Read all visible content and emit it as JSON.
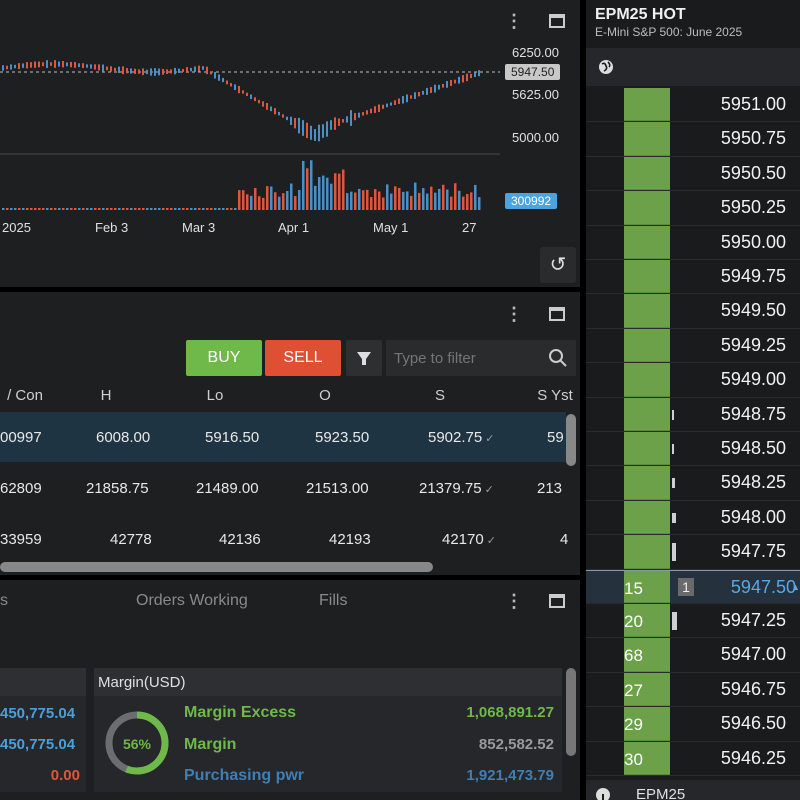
{
  "chart_panel": {
    "y_labels": [
      "6250.00",
      "5625.00",
      "5000.00"
    ],
    "last_price_tag": "5947.50",
    "volume_tag": "300992",
    "x_labels": [
      "2025",
      "Feb 3",
      "Mar 3",
      "Apr 1",
      "May 1",
      "27"
    ],
    "colors": {
      "up": "#4a90c8",
      "down": "#e0563c",
      "volume_tag": "#4ca3dd"
    }
  },
  "quote_panel": {
    "buy_label": "BUY",
    "sell_label": "SELL",
    "filter_placeholder": "Type to filter",
    "columns": [
      "/ Con",
      "H",
      "Lo",
      "O",
      "S",
      "S Yst"
    ],
    "rows": [
      {
        "con": "00997",
        "h": "6008.00",
        "lo": "5916.50",
        "o": "5923.50",
        "s": "5902.75",
        "ys": "59"
      },
      {
        "con": "62809",
        "h": "21858.75",
        "lo": "21489.00",
        "o": "21513.00",
        "s": "21379.75",
        "ys": "213"
      },
      {
        "con": "33959",
        "h": "42778",
        "lo": "42136",
        "o": "42193",
        "s": "42170",
        "ys": "4"
      }
    ],
    "check": "✓"
  },
  "orders_panel": {
    "tabs": [
      "s",
      "Orders Working",
      "Fills"
    ],
    "left_values": [
      "450,775.04",
      "450,775.04",
      "0.00"
    ],
    "margin": {
      "title": "Margin(USD)",
      "gauge": "56%",
      "gauge_fraction": 0.56,
      "rows": [
        {
          "label": "Margin Excess",
          "value": "1,068,891.27"
        },
        {
          "label": "Margin",
          "value": "852,582.52"
        },
        {
          "label": "Purchasing pwr",
          "value": "1,921,473.79"
        }
      ]
    }
  },
  "dom_panel": {
    "symbol": "EPM25 HOT",
    "description": "E-Mini S&P 500: June 2025",
    "prices": [
      "5951.00",
      "5950.75",
      "5950.50",
      "5950.25",
      "5950.00",
      "5949.75",
      "5949.50",
      "5949.25",
      "5949.00",
      "5948.75",
      "5948.50",
      "5948.25",
      "5948.00",
      "5947.75",
      "5947.50",
      "5947.25",
      "5947.00",
      "5946.75",
      "5946.50",
      "5946.25"
    ],
    "bid_qty": [
      "",
      "",
      "",
      "",
      "",
      "",
      "",
      "",
      "",
      "",
      "",
      "",
      "",
      "",
      "15",
      "20",
      "68",
      "27",
      "29",
      "30"
    ],
    "last_position_qty": "1",
    "footer_symbol": "EPM25"
  }
}
